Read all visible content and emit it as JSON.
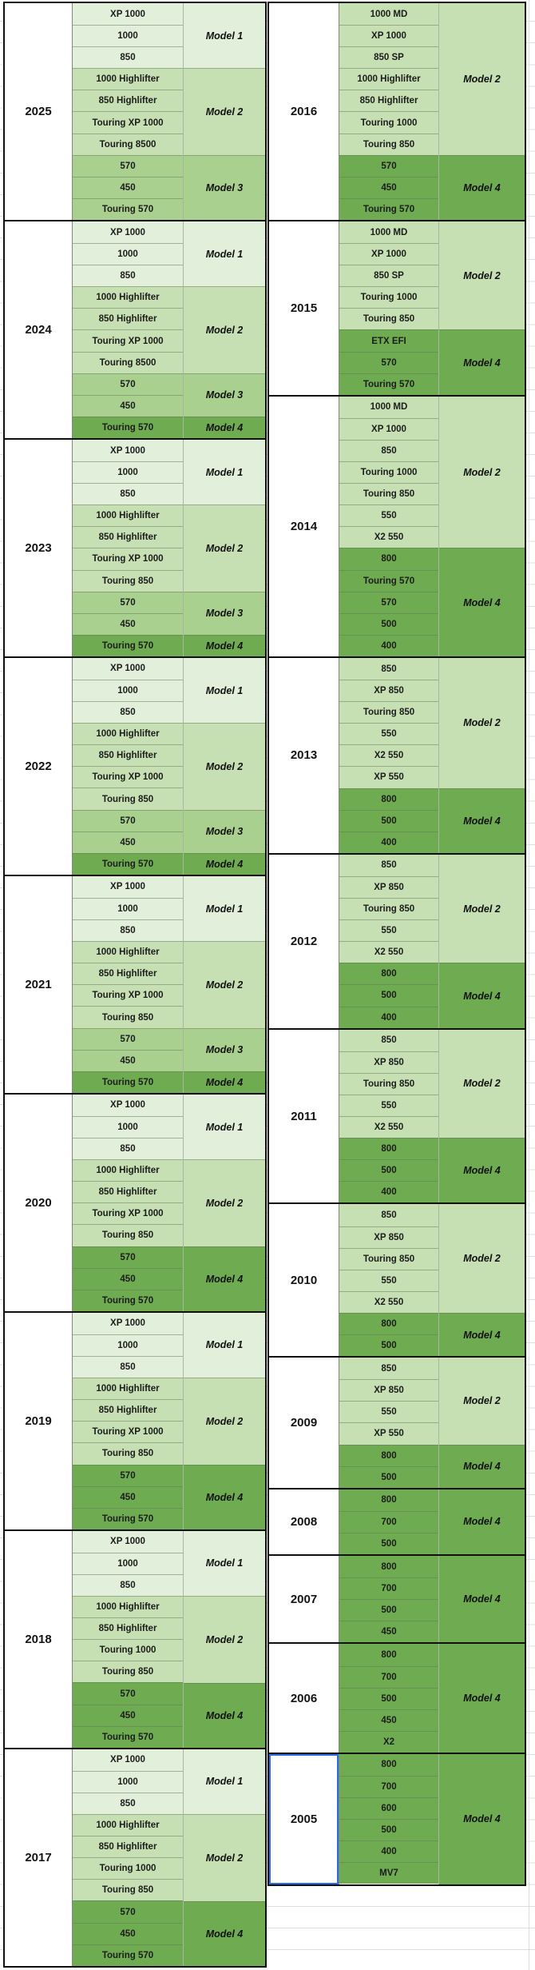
{
  "palette": {
    "model1": "#E2EFDA",
    "model2": "#C6E0B4",
    "model3": "#A9D08E",
    "model4": "#6FAB50",
    "selection": "#2B6BE6",
    "table_border": "#101010"
  },
  "selection": {
    "table": "right_table",
    "year": "2005"
  },
  "left_table": {
    "blocks": [
      {
        "year": "2025",
        "groups": [
          {
            "label": "Model 1",
            "tone": "model1",
            "models": [
              "XP 1000",
              "1000",
              "850"
            ]
          },
          {
            "label": "Model 2",
            "tone": "model2",
            "models": [
              "1000 Highlifter",
              "850 Highlifter",
              "Touring XP 1000",
              "Touring 8500"
            ]
          },
          {
            "label": "Model 3",
            "tone": "model3",
            "models": [
              "570",
              "450",
              "Touring 570"
            ]
          }
        ]
      },
      {
        "year": "2024",
        "groups": [
          {
            "label": "Model 1",
            "tone": "model1",
            "models": [
              "XP 1000",
              "1000",
              "850"
            ]
          },
          {
            "label": "Model 2",
            "tone": "model2",
            "models": [
              "1000 Highlifter",
              "850 Highlifter",
              "Touring XP 1000",
              "Touring 8500"
            ]
          },
          {
            "label": "Model 3",
            "tone": "model3",
            "models": [
              "570",
              "450"
            ]
          },
          {
            "label": "Model 4",
            "tone": "model4",
            "models": [
              "Touring 570"
            ]
          }
        ]
      },
      {
        "year": "2023",
        "groups": [
          {
            "label": "Model 1",
            "tone": "model1",
            "models": [
              "XP 1000",
              "1000",
              "850"
            ]
          },
          {
            "label": "Model 2",
            "tone": "model2",
            "models": [
              "1000 Highlifter",
              "850 Highlifter",
              "Touring XP 1000",
              "Touring 850"
            ]
          },
          {
            "label": "Model 3",
            "tone": "model3",
            "models": [
              "570",
              "450"
            ]
          },
          {
            "label": "Model 4",
            "tone": "model4",
            "models": [
              "Touring 570"
            ]
          }
        ]
      },
      {
        "year": "2022",
        "groups": [
          {
            "label": "Model 1",
            "tone": "model1",
            "models": [
              "XP 1000",
              "1000",
              "850"
            ]
          },
          {
            "label": "Model 2",
            "tone": "model2",
            "models": [
              "1000 Highlifter",
              "850 Highlifter",
              "Touring XP 1000",
              "Touring 850"
            ]
          },
          {
            "label": "Model 3",
            "tone": "model3",
            "models": [
              "570",
              "450"
            ]
          },
          {
            "label": "Model 4",
            "tone": "model4",
            "models": [
              "Touring 570"
            ]
          }
        ]
      },
      {
        "year": "2021",
        "groups": [
          {
            "label": "Model 1",
            "tone": "model1",
            "models": [
              "XP 1000",
              "1000",
              "850"
            ]
          },
          {
            "label": "Model 2",
            "tone": "model2",
            "models": [
              "1000 Highlifter",
              "850 Highlifter",
              "Touring XP 1000",
              "Touring 850"
            ]
          },
          {
            "label": "Model 3",
            "tone": "model3",
            "models": [
              "570",
              "450"
            ]
          },
          {
            "label": "Model 4",
            "tone": "model4",
            "models": [
              "Touring 570"
            ]
          }
        ]
      },
      {
        "year": "2020",
        "groups": [
          {
            "label": "Model 1",
            "tone": "model1",
            "models": [
              "XP 1000",
              "1000",
              "850"
            ]
          },
          {
            "label": "Model 2",
            "tone": "model2",
            "models": [
              "1000 Highlifter",
              "850 Highlifter",
              "Touring XP 1000",
              "Touring 850"
            ]
          },
          {
            "label": "Model 4",
            "tone": "model4",
            "models": [
              "570",
              "450",
              "Touring 570"
            ]
          }
        ]
      },
      {
        "year": "2019",
        "groups": [
          {
            "label": "Model 1",
            "tone": "model1",
            "models": [
              "XP 1000",
              "1000",
              "850"
            ]
          },
          {
            "label": "Model 2",
            "tone": "model2",
            "models": [
              "1000 Highlifter",
              "850 Highlifter",
              "Touring XP 1000",
              "Touring 850"
            ]
          },
          {
            "label": "Model 4",
            "tone": "model4",
            "models": [
              "570",
              "450",
              "Touring 570"
            ]
          }
        ]
      },
      {
        "year": "2018",
        "groups": [
          {
            "label": "Model 1",
            "tone": "model1",
            "models": [
              "XP 1000",
              "1000",
              "850"
            ]
          },
          {
            "label": "Model 2",
            "tone": "model2",
            "models": [
              "1000 Highlifter",
              "850 Highlifter",
              "Touring 1000",
              "Touring 850"
            ]
          },
          {
            "label": "Model 4",
            "tone": "model4",
            "models": [
              "570",
              "450",
              "Touring 570"
            ]
          }
        ]
      },
      {
        "year": "2017",
        "groups": [
          {
            "label": "Model 1",
            "tone": "model1",
            "models": [
              "XP 1000",
              "1000",
              "850"
            ]
          },
          {
            "label": "Model 2",
            "tone": "model2",
            "models": [
              "1000 Highlifter",
              "850 Highlifter",
              "Touring 1000",
              "Touring 850"
            ]
          },
          {
            "label": "Model 4",
            "tone": "model4",
            "models": [
              "570",
              "450",
              "Touring 570"
            ]
          }
        ]
      }
    ]
  },
  "right_table": {
    "blocks": [
      {
        "year": "2016",
        "groups": [
          {
            "label": "Model 2",
            "tone": "model2",
            "models": [
              "1000 MD",
              "XP 1000",
              "850 SP",
              "1000 Highlifter",
              "850 Highlifter",
              "Touring 1000",
              "Touring 850"
            ]
          },
          {
            "label": "Model 4",
            "tone": "model4",
            "models": [
              "570",
              "450",
              "Touring 570"
            ]
          }
        ]
      },
      {
        "year": "2015",
        "groups": [
          {
            "label": "Model 2",
            "tone": "model2",
            "models": [
              "1000 MD",
              "XP 1000",
              "850 SP",
              "Touring 1000",
              "Touring 850"
            ]
          },
          {
            "label": "Model 4",
            "tone": "model4",
            "models": [
              "ETX EFI",
              "570",
              "Touring 570"
            ]
          }
        ]
      },
      {
        "year": "2014",
        "groups": [
          {
            "label": "Model 2",
            "tone": "model2",
            "models": [
              "1000 MD",
              "XP 1000",
              "850",
              "Touring 1000",
              "Touring 850",
              "550",
              "X2 550"
            ]
          },
          {
            "label": "Model 4",
            "tone": "model4",
            "models": [
              "800",
              "Touring 570",
              "570",
              "500",
              "400"
            ]
          }
        ]
      },
      {
        "year": "2013",
        "groups": [
          {
            "label": "Model 2",
            "tone": "model2",
            "models": [
              "850",
              "XP 850",
              "Touring 850",
              "550",
              "X2 550",
              "XP 550"
            ]
          },
          {
            "label": "Model 4",
            "tone": "model4",
            "models": [
              "800",
              "500",
              "400"
            ]
          }
        ]
      },
      {
        "year": "2012",
        "groups": [
          {
            "label": "Model 2",
            "tone": "model2",
            "models": [
              "850",
              "XP 850",
              "Touring 850",
              "550",
              "X2 550"
            ]
          },
          {
            "label": "Model 4",
            "tone": "model4",
            "models": [
              "800",
              "500",
              "400"
            ]
          }
        ]
      },
      {
        "year": "2011",
        "groups": [
          {
            "label": "Model 2",
            "tone": "model2",
            "models": [
              "850",
              "XP 850",
              "Touring 850",
              "550",
              "X2 550"
            ]
          },
          {
            "label": "Model 4",
            "tone": "model4",
            "models": [
              "800",
              "500",
              "400"
            ]
          }
        ]
      },
      {
        "year": "2010",
        "groups": [
          {
            "label": "Model 2",
            "tone": "model2",
            "models": [
              "850",
              "XP 850",
              "Touring 850",
              "550",
              "X2 550"
            ]
          },
          {
            "label": "Model 4",
            "tone": "model4",
            "models": [
              "800",
              "500"
            ]
          }
        ]
      },
      {
        "year": "2009",
        "groups": [
          {
            "label": "Model 2",
            "tone": "model2",
            "models": [
              "850",
              "XP 850",
              "550",
              "XP 550"
            ]
          },
          {
            "label": "Model 4",
            "tone": "model4",
            "models": [
              "800",
              "500"
            ]
          }
        ]
      },
      {
        "year": "2008",
        "groups": [
          {
            "label": "Model 4",
            "tone": "model4",
            "models": [
              "800",
              "700",
              "500"
            ]
          }
        ]
      },
      {
        "year": "2007",
        "groups": [
          {
            "label": "Model 4",
            "tone": "model4",
            "models": [
              "800",
              "700",
              "500",
              "450"
            ]
          }
        ]
      },
      {
        "year": "2006",
        "groups": [
          {
            "label": "Model 4",
            "tone": "model4",
            "models": [
              "800",
              "700",
              "500",
              "450",
              "X2"
            ]
          }
        ]
      },
      {
        "year": "2005",
        "groups": [
          {
            "label": "Model 4",
            "tone": "model4",
            "models": [
              "800",
              "700",
              "600",
              "500",
              "400",
              "MV7"
            ]
          }
        ]
      }
    ]
  }
}
